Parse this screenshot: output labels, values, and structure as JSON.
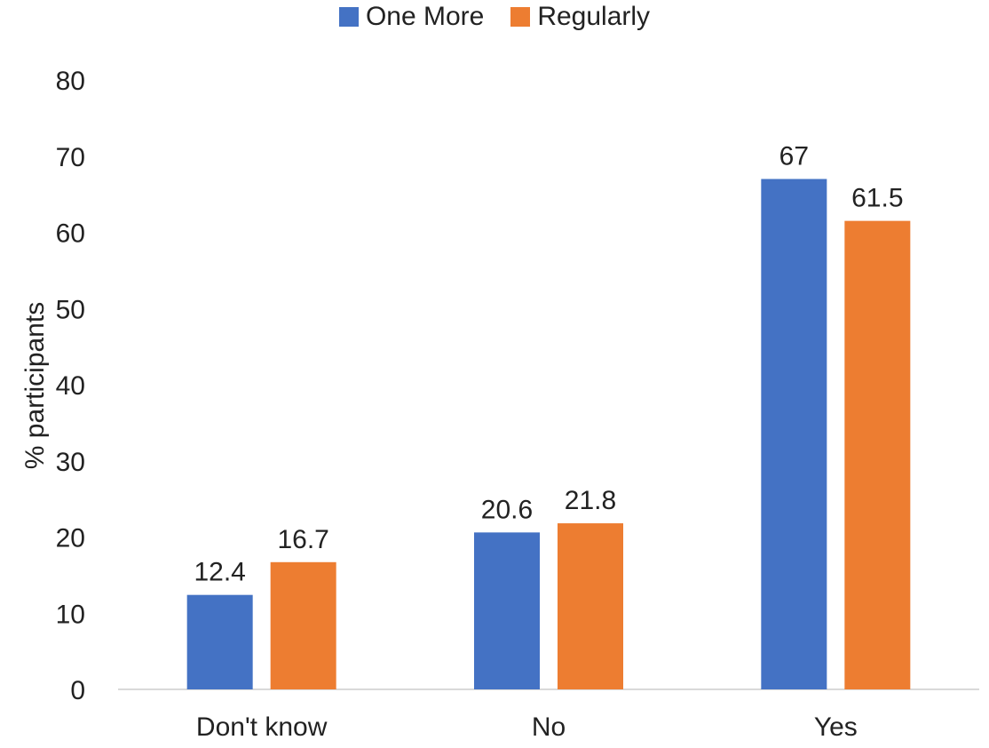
{
  "chart_data": {
    "type": "bar",
    "categories": [
      "Don't know",
      "No",
      "Yes"
    ],
    "series": [
      {
        "name": "One More",
        "values": [
          12.4,
          20.6,
          67
        ],
        "labels": [
          "12.4",
          "20.6",
          "67"
        ],
        "color": "#4472C4"
      },
      {
        "name": "Regularly",
        "values": [
          16.7,
          21.8,
          61.5
        ],
        "labels": [
          "16.7",
          "21.8",
          "61.5"
        ],
        "color": "#ED7D31"
      }
    ],
    "ylabel": "% participants",
    "xlabel": "",
    "ylim": [
      0,
      80
    ],
    "yticks": [
      0,
      10,
      20,
      30,
      40,
      50,
      60,
      70,
      80
    ],
    "legend_position": "top-center",
    "grid": false
  }
}
